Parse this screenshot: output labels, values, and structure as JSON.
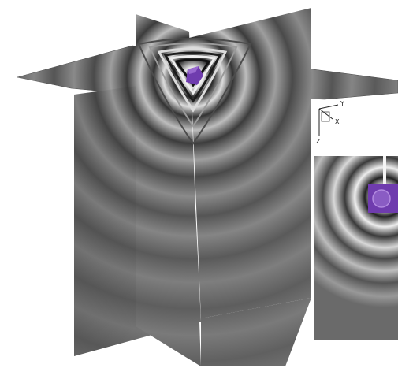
{
  "figure": {
    "background": "#ffffff",
    "slice_base_color": "#6f6f6f",
    "ring_color_light": "#d8d8d8",
    "ring_color_dark": "#2c2c2c",
    "body_color": "#6f3cae",
    "body_color_light": "#9a6ad0"
  },
  "axis_triad": {
    "labels": {
      "y": "Y",
      "x": "X",
      "z": "Z"
    }
  }
}
